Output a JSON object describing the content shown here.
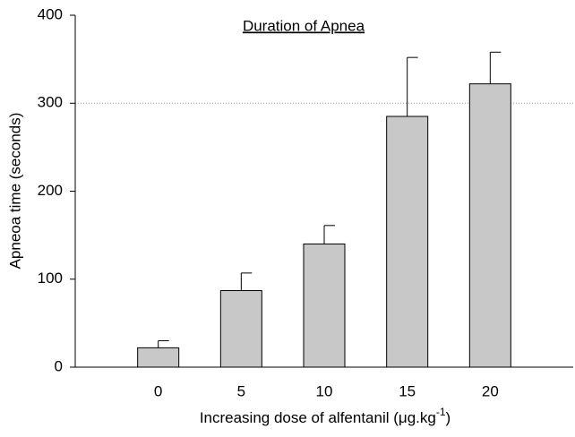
{
  "chart_data": {
    "type": "bar",
    "title": "Duration of Apnea",
    "y_label": "Apneoa time (seconds)",
    "x_label": [
      "Increasing dose of alfentanil (",
      "μ",
      "g.kg",
      "-1",
      ")"
    ],
    "categories": [
      "0",
      "5",
      "10",
      "15",
      "20"
    ],
    "values": [
      22,
      87,
      140,
      285,
      322
    ],
    "errors": [
      8,
      20,
      21,
      67,
      36
    ],
    "color": "#c8c8c8",
    "ylim": [
      0,
      400
    ],
    "yticks": [
      0,
      100,
      200,
      300,
      400
    ],
    "reference_line": 300
  }
}
